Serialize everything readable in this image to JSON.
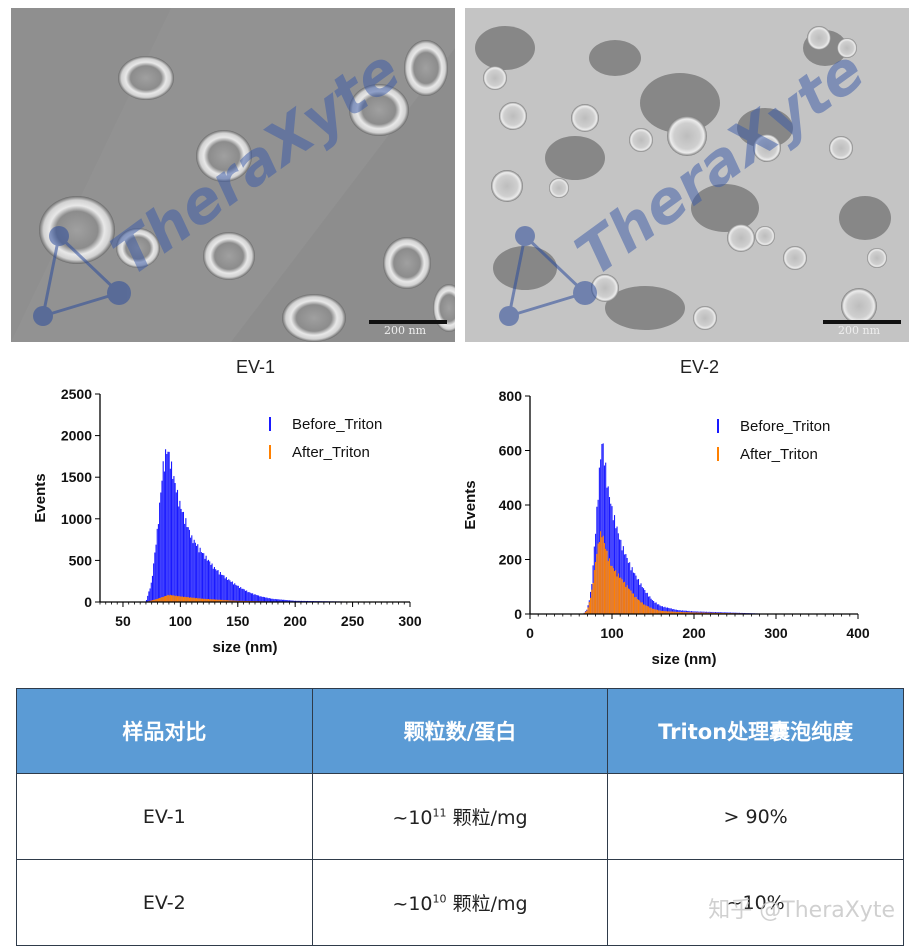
{
  "tem_images": [
    {
      "watermark": "TheraXyte",
      "scale_bar": "200 nm"
    },
    {
      "watermark": "TheraXyte",
      "scale_bar": "200 nm"
    }
  ],
  "colors": {
    "before": "#1a1aff",
    "after": "#ff8000",
    "header": "#5b9bd5"
  },
  "chart_data": [
    {
      "type": "bar",
      "title": "EV-1",
      "xlabel": "size (nm)",
      "ylabel": "Events",
      "xlim": [
        30,
        300
      ],
      "ylim": [
        0,
        2500
      ],
      "xticks": [
        50,
        100,
        150,
        200,
        250,
        300
      ],
      "yticks": [
        0,
        500,
        1000,
        1500,
        2000,
        2500
      ],
      "legend_position": "top-right",
      "series": [
        {
          "name": "Before_Triton",
          "color": "#1a1aff",
          "x": [
            70,
            75,
            80,
            85,
            88,
            90,
            95,
            100,
            110,
            120,
            130,
            140,
            150,
            160,
            170,
            180,
            200,
            250,
            300
          ],
          "y": [
            0,
            250,
            900,
            1700,
            1900,
            1850,
            1500,
            1200,
            800,
            600,
            420,
            300,
            200,
            120,
            70,
            40,
            15,
            5,
            0
          ]
        },
        {
          "name": "After_Triton",
          "color": "#ff8000",
          "x": [
            70,
            80,
            90,
            100,
            120,
            150,
            200
          ],
          "y": [
            0,
            40,
            90,
            70,
            40,
            15,
            0
          ]
        }
      ]
    },
    {
      "type": "bar",
      "title": "EV-2",
      "xlabel": "size (nm)",
      "ylabel": "Events",
      "xlim": [
        0,
        400
      ],
      "ylim": [
        0,
        800
      ],
      "xticks": [
        0,
        100,
        200,
        300,
        400
      ],
      "yticks": [
        0,
        200,
        400,
        600,
        800
      ],
      "legend_position": "top-right",
      "series": [
        {
          "name": "Before_Triton",
          "color": "#1a1aff",
          "x": [
            65,
            70,
            75,
            80,
            85,
            88,
            90,
            95,
            100,
            110,
            120,
            130,
            140,
            150,
            160,
            180,
            200,
            250,
            300
          ],
          "y": [
            0,
            20,
            100,
            320,
            560,
            660,
            620,
            480,
            400,
            280,
            200,
            140,
            90,
            50,
            30,
            15,
            10,
            5,
            0
          ]
        },
        {
          "name": "After_Triton",
          "color": "#ff8000",
          "x": [
            65,
            70,
            75,
            80,
            85,
            88,
            90,
            95,
            100,
            110,
            120,
            130,
            140,
            150,
            160,
            180,
            200,
            250,
            300
          ],
          "y": [
            0,
            15,
            80,
            200,
            300,
            310,
            280,
            220,
            180,
            140,
            100,
            60,
            35,
            20,
            12,
            8,
            6,
            3,
            0
          ]
        }
      ]
    }
  ],
  "table": {
    "headers": [
      "样品对比",
      "颗粒数/蛋白",
      "Triton处理囊泡纯度"
    ],
    "rows": [
      {
        "sample": "EV-1",
        "count_prefix": "~10",
        "count_exp": "11",
        "count_suffix": " 颗粒/mg",
        "purity": "> 90%"
      },
      {
        "sample": "EV-2",
        "count_prefix": "~10",
        "count_exp": "10",
        "count_suffix": " 颗粒/mg",
        "purity": "~10%"
      }
    ]
  },
  "site_watermark": "知乎 @TheraXyte"
}
